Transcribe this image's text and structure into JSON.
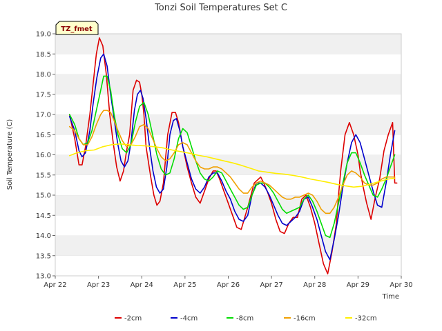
{
  "chart_data": {
    "type": "line",
    "title": "Tonzi Soil Temperatures Set C",
    "xlabel": "Time",
    "ylabel": "Soil Temperature (C)",
    "badge": "TZ_fmet",
    "xlim": [
      22,
      30
    ],
    "ylim": [
      13.0,
      19.0
    ],
    "x_ticks": [
      22,
      23,
      24,
      25,
      26,
      27,
      28,
      29,
      30
    ],
    "x_tick_labels": [
      "Apr 22",
      "Apr 23",
      "Apr 24",
      "Apr 25",
      "Apr 26",
      "Apr 27",
      "Apr 28",
      "Apr 29",
      "Apr 30"
    ],
    "y_ticks": [
      13.0,
      13.5,
      14.0,
      14.5,
      15.0,
      15.5,
      16.0,
      16.5,
      17.0,
      17.5,
      18.0,
      18.5,
      19.0
    ],
    "y_tick_labels": [
      "13.0",
      "13.5",
      "14.0",
      "14.5",
      "15.0",
      "15.5",
      "16.0",
      "16.5",
      "17.0",
      "17.5",
      "18.0",
      "18.5",
      "19.0"
    ],
    "grid": "horizontal bands",
    "legend_position": "bottom",
    "series": [
      {
        "name": "-2cm",
        "color": "#dd0000",
        "x": [
          22.33,
          22.45,
          22.55,
          22.62,
          22.7,
          22.8,
          22.88,
          22.95,
          23.02,
          23.1,
          23.18,
          23.26,
          23.34,
          23.42,
          23.5,
          23.58,
          23.65,
          23.72,
          23.8,
          23.88,
          23.95,
          24.0,
          24.05,
          24.1,
          24.2,
          24.28,
          24.35,
          24.42,
          24.5,
          24.6,
          24.7,
          24.78,
          24.85,
          24.9,
          24.95,
          25.05,
          25.15,
          25.25,
          25.35,
          25.45,
          25.55,
          25.65,
          25.72,
          25.8,
          25.9,
          26.0,
          26.1,
          26.2,
          26.3,
          26.45,
          26.6,
          26.75,
          26.82,
          26.9,
          27.0,
          27.1,
          27.2,
          27.3,
          27.4,
          27.5,
          27.6,
          27.7,
          27.8,
          27.9,
          28.0,
          28.1,
          28.2,
          28.3,
          28.4,
          28.5,
          28.55,
          28.6,
          28.7,
          28.8,
          28.9,
          29.0,
          29.05,
          29.12,
          29.2,
          29.3,
          29.4,
          29.5,
          29.6,
          29.7,
          29.8,
          29.85,
          29.9
        ],
        "y": [
          17.0,
          16.4,
          15.75,
          15.75,
          16.2,
          17.0,
          17.8,
          18.5,
          18.9,
          18.7,
          18.0,
          17.0,
          16.3,
          15.7,
          15.35,
          15.6,
          16.1,
          16.5,
          17.6,
          17.85,
          17.8,
          17.5,
          17.0,
          16.2,
          15.5,
          15.0,
          14.75,
          14.85,
          15.3,
          16.5,
          17.05,
          17.05,
          16.8,
          16.5,
          16.2,
          15.7,
          15.3,
          14.95,
          14.8,
          15.1,
          15.4,
          15.6,
          15.6,
          15.4,
          15.1,
          14.8,
          14.5,
          14.2,
          14.15,
          14.7,
          15.3,
          15.45,
          15.3,
          15.1,
          14.8,
          14.4,
          14.1,
          14.05,
          14.3,
          14.45,
          14.45,
          14.9,
          15.0,
          14.7,
          14.3,
          13.8,
          13.3,
          13.05,
          13.6,
          14.3,
          15.0,
          15.6,
          16.5,
          16.8,
          16.5,
          16.0,
          15.6,
          15.2,
          14.8,
          14.4,
          14.95,
          15.4,
          16.1,
          16.5,
          16.8,
          15.3,
          15.3
        ],
        "note": ""
      },
      {
        "name": "-4cm",
        "color": "#0000cc",
        "x": [
          22.33,
          22.45,
          22.55,
          22.62,
          22.7,
          22.8,
          22.88,
          22.96,
          23.05,
          23.12,
          23.2,
          23.28,
          23.36,
          23.44,
          23.52,
          23.6,
          23.68,
          23.75,
          23.83,
          23.9,
          23.97,
          24.03,
          24.1,
          24.18,
          24.26,
          24.34,
          24.42,
          24.5,
          24.58,
          24.65,
          24.73,
          24.8,
          24.88,
          24.95,
          25.05,
          25.15,
          25.25,
          25.35,
          25.45,
          25.55,
          25.65,
          25.75,
          25.85,
          25.95,
          26.05,
          26.15,
          26.25,
          26.35,
          26.45,
          26.55,
          26.65,
          26.75,
          26.85,
          26.95,
          27.05,
          27.15,
          27.25,
          27.35,
          27.45,
          27.55,
          27.65,
          27.75,
          27.85,
          27.95,
          28.05,
          28.15,
          28.25,
          28.35,
          28.45,
          28.55,
          28.65,
          28.75,
          28.85,
          28.95,
          29.05,
          29.15,
          29.25,
          29.35,
          29.45,
          29.55,
          29.65,
          29.75,
          29.85
        ],
        "y": [
          16.95,
          16.6,
          16.1,
          15.95,
          16.05,
          16.6,
          17.3,
          17.9,
          18.4,
          18.5,
          18.2,
          17.5,
          16.9,
          16.3,
          15.85,
          15.7,
          15.85,
          16.3,
          17.1,
          17.5,
          17.6,
          17.4,
          16.9,
          16.2,
          15.6,
          15.2,
          15.05,
          15.15,
          15.7,
          16.5,
          16.85,
          16.9,
          16.6,
          16.2,
          15.8,
          15.4,
          15.15,
          15.05,
          15.2,
          15.45,
          15.55,
          15.55,
          15.35,
          15.1,
          14.9,
          14.6,
          14.4,
          14.35,
          14.5,
          15.0,
          15.3,
          15.3,
          15.2,
          15.0,
          14.75,
          14.5,
          14.3,
          14.25,
          14.35,
          14.45,
          14.6,
          14.9,
          14.95,
          14.7,
          14.4,
          14.0,
          13.6,
          13.4,
          13.9,
          14.5,
          15.2,
          15.8,
          16.3,
          16.5,
          16.3,
          15.9,
          15.5,
          15.1,
          14.75,
          14.7,
          15.3,
          16.0,
          16.6
        ]
      },
      {
        "name": "-8cm",
        "color": "#00dd00",
        "x": [
          22.33,
          22.45,
          22.55,
          22.65,
          22.75,
          22.85,
          22.95,
          23.05,
          23.12,
          23.2,
          23.28,
          23.36,
          23.45,
          23.55,
          23.65,
          23.75,
          23.85,
          23.95,
          24.05,
          24.15,
          24.25,
          24.35,
          24.45,
          24.55,
          24.65,
          24.75,
          24.85,
          24.95,
          25.05,
          25.15,
          25.25,
          25.35,
          25.45,
          25.55,
          25.65,
          25.75,
          25.85,
          25.95,
          26.05,
          26.15,
          26.25,
          26.35,
          26.45,
          26.55,
          26.65,
          26.75,
          26.85,
          26.95,
          27.05,
          27.15,
          27.25,
          27.35,
          27.45,
          27.55,
          27.65,
          27.75,
          27.85,
          27.95,
          28.05,
          28.15,
          28.25,
          28.35,
          28.45,
          28.55,
          28.65,
          28.75,
          28.85,
          28.95,
          29.05,
          29.15,
          29.25,
          29.35,
          29.45,
          29.55,
          29.65,
          29.75,
          29.85
        ],
        "y": [
          17.0,
          16.75,
          16.4,
          16.25,
          16.3,
          16.6,
          17.1,
          17.6,
          17.95,
          17.95,
          17.6,
          17.0,
          16.5,
          16.15,
          16.05,
          16.25,
          16.8,
          17.2,
          17.3,
          17.0,
          16.5,
          16.0,
          15.65,
          15.5,
          15.55,
          15.9,
          16.4,
          16.65,
          16.55,
          16.2,
          15.85,
          15.55,
          15.4,
          15.35,
          15.45,
          15.6,
          15.55,
          15.35,
          15.15,
          14.95,
          14.75,
          14.65,
          14.7,
          15.0,
          15.25,
          15.3,
          15.3,
          15.2,
          15.05,
          14.85,
          14.65,
          14.55,
          14.6,
          14.65,
          14.7,
          14.9,
          15.0,
          14.85,
          14.6,
          14.3,
          14.0,
          13.95,
          14.3,
          14.8,
          15.3,
          15.8,
          16.05,
          16.05,
          15.8,
          15.5,
          15.25,
          15.0,
          14.95,
          15.15,
          15.4,
          15.7,
          16.0
        ]
      },
      {
        "name": "-16cm",
        "color": "#f0a000",
        "x": [
          22.33,
          22.45,
          22.55,
          22.65,
          22.75,
          22.85,
          22.95,
          23.05,
          23.12,
          23.2,
          23.28,
          23.36,
          23.45,
          23.55,
          23.65,
          23.75,
          23.85,
          23.95,
          24.05,
          24.15,
          24.25,
          24.35,
          24.45,
          24.55,
          24.65,
          24.75,
          24.85,
          24.95,
          25.05,
          25.15,
          25.25,
          25.35,
          25.45,
          25.55,
          25.65,
          25.75,
          25.85,
          25.95,
          26.05,
          26.15,
          26.25,
          26.35,
          26.45,
          26.55,
          26.65,
          26.75,
          26.85,
          26.95,
          27.05,
          27.15,
          27.25,
          27.35,
          27.45,
          27.55,
          27.65,
          27.75,
          27.85,
          27.95,
          28.05,
          28.15,
          28.25,
          28.35,
          28.45,
          28.55,
          28.65,
          28.75,
          28.85,
          28.95,
          29.05,
          29.15,
          29.25,
          29.35,
          29.45,
          29.55,
          29.65,
          29.75,
          29.85
        ],
        "y": [
          16.7,
          16.6,
          16.4,
          16.25,
          16.25,
          16.45,
          16.75,
          17.0,
          17.1,
          17.1,
          17.05,
          16.85,
          16.6,
          16.35,
          16.2,
          16.25,
          16.45,
          16.7,
          16.75,
          16.65,
          16.4,
          16.15,
          15.95,
          15.85,
          15.9,
          16.05,
          16.25,
          16.3,
          16.25,
          16.05,
          15.85,
          15.7,
          15.65,
          15.65,
          15.7,
          15.7,
          15.65,
          15.55,
          15.45,
          15.3,
          15.15,
          15.05,
          15.05,
          15.2,
          15.3,
          15.35,
          15.3,
          15.25,
          15.15,
          15.05,
          14.95,
          14.9,
          14.9,
          14.95,
          14.95,
          15.0,
          15.05,
          15.0,
          14.85,
          14.65,
          14.55,
          14.55,
          14.7,
          14.95,
          15.25,
          15.5,
          15.6,
          15.55,
          15.45,
          15.3,
          15.25,
          15.25,
          15.3,
          15.4,
          15.45,
          15.45,
          15.45
        ]
      },
      {
        "name": "-32cm",
        "color": "#ffee00",
        "x": [
          22.33,
          22.5,
          22.7,
          22.9,
          23.1,
          23.3,
          23.5,
          23.7,
          23.9,
          24.1,
          24.3,
          24.5,
          24.7,
          24.9,
          25.1,
          25.3,
          25.5,
          25.7,
          25.9,
          26.1,
          26.3,
          26.5,
          26.7,
          26.9,
          27.1,
          27.3,
          27.5,
          27.7,
          27.9,
          28.1,
          28.3,
          28.5,
          28.7,
          28.9,
          29.1,
          29.3,
          29.5,
          29.7,
          29.85
        ],
        "y": [
          15.98,
          16.05,
          16.1,
          16.12,
          16.2,
          16.25,
          16.27,
          16.25,
          16.23,
          16.22,
          16.2,
          16.17,
          16.12,
          16.08,
          16.04,
          15.99,
          15.95,
          15.9,
          15.85,
          15.8,
          15.74,
          15.67,
          15.6,
          15.57,
          15.54,
          15.52,
          15.49,
          15.45,
          15.4,
          15.36,
          15.32,
          15.27,
          15.23,
          15.2,
          15.22,
          15.28,
          15.34,
          15.4,
          15.42
        ]
      }
    ]
  }
}
